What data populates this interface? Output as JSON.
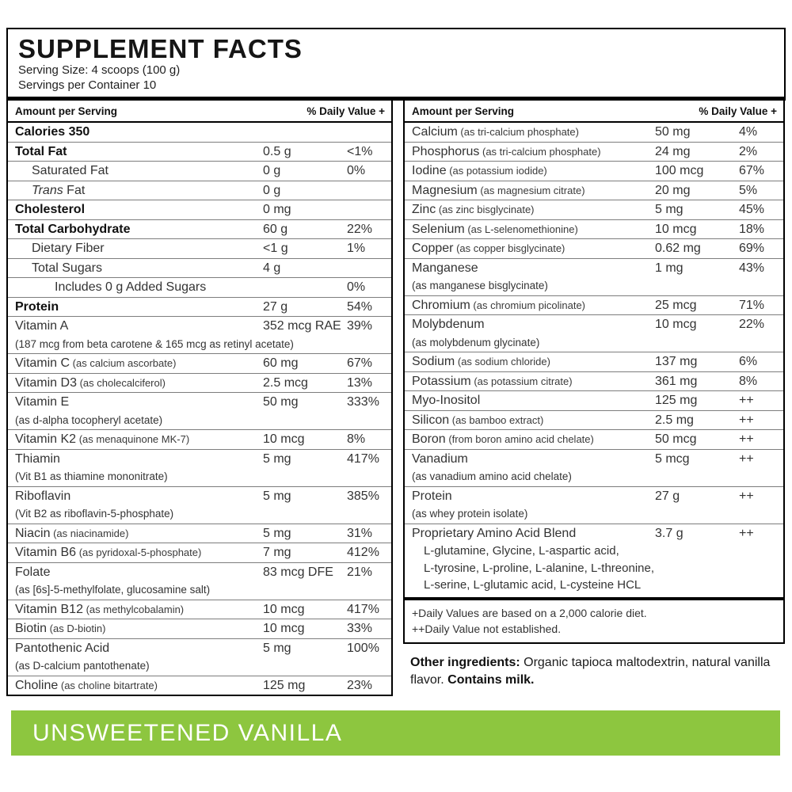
{
  "header": {
    "title": "SUPPLEMENT FACTS",
    "serving_size": "Serving Size: 4 scoops (100 g)",
    "servings_per_container": "Servings per Container 10"
  },
  "column_headers": {
    "amount": "Amount per Serving",
    "daily_value": "% Daily Value +"
  },
  "left_rows": [
    {
      "name": "Calories 350",
      "bold": true
    },
    {
      "name": "Total Fat",
      "bold": true,
      "amount": "0.5 g",
      "dv": "<1%"
    },
    {
      "name": "Saturated Fat",
      "indent": 1,
      "amount": "0 g",
      "dv": "0%"
    },
    {
      "name": "Fat",
      "italic_prefix": "Trans",
      "indent": 1,
      "amount": "0 g"
    },
    {
      "name": "Cholesterol",
      "bold": true,
      "amount": "0 mg"
    },
    {
      "name": "Total Carbohydrate",
      "bold": true,
      "amount": "60 g",
      "dv": "22%"
    },
    {
      "name": "Dietary Fiber",
      "indent": 1,
      "amount": "<1 g",
      "dv": "1%"
    },
    {
      "name": "Total Sugars",
      "indent": 1,
      "amount": "4 g"
    },
    {
      "name": "Includes 0 g Added Sugars",
      "indent": 2,
      "dv": "0%"
    },
    {
      "name": "Protein",
      "bold": true,
      "amount": "27 g",
      "dv": "54%"
    },
    {
      "name": "Vitamin A",
      "amount": "352 mcg RAE",
      "dv": "39%",
      "sub": "(187 mcg from beta carotene & 165 mcg as retinyl acetate)"
    },
    {
      "name": "Vitamin C",
      "detail": "(as calcium ascorbate)",
      "amount": "60 mg",
      "dv": "67%"
    },
    {
      "name": "Vitamin D3",
      "detail": "(as cholecalciferol)",
      "amount": "2.5 mcg",
      "dv": "13%"
    },
    {
      "name": "Vitamin E",
      "amount": "50 mg",
      "dv": "333%",
      "sub": "(as d-alpha tocopheryl acetate)"
    },
    {
      "name": "Vitamin K2",
      "detail": "(as menaquinone MK-7)",
      "amount": "10 mcg",
      "dv": "8%"
    },
    {
      "name": "Thiamin",
      "amount": "5 mg",
      "dv": "417%",
      "sub": "(Vit B1 as thiamine mononitrate)"
    },
    {
      "name": "Riboflavin",
      "amount": "5 mg",
      "dv": "385%",
      "sub": "(Vit B2 as riboflavin-5-phosphate)"
    },
    {
      "name": "Niacin",
      "detail": "(as niacinamide)",
      "amount": "5 mg",
      "dv": "31%"
    },
    {
      "name": "Vitamin B6",
      "detail": "(as pyridoxal-5-phosphate)",
      "amount": "7 mg",
      "dv": "412%"
    },
    {
      "name": "Folate",
      "amount": "83 mcg DFE",
      "dv": "21%",
      "sub": "(as [6s]-5-methylfolate, glucosamine salt)"
    },
    {
      "name": "Vitamin B12",
      "detail": "(as methylcobalamin)",
      "amount": "10 mcg",
      "dv": "417%"
    },
    {
      "name": "Biotin",
      "detail": "(as D-biotin)",
      "amount": "10 mcg",
      "dv": "33%"
    },
    {
      "name": "Pantothenic Acid",
      "amount": "5 mg",
      "dv": "100%",
      "sub": "(as D-calcium pantothenate)"
    },
    {
      "name": "Choline",
      "detail": "(as choline bitartrate)",
      "amount": "125 mg",
      "dv": "23%"
    }
  ],
  "right_rows": [
    {
      "name": "Calcium",
      "detail": "(as tri-calcium phosphate)",
      "amount": "50 mg",
      "dv": "4%"
    },
    {
      "name": "Phosphorus",
      "detail": "(as tri-calcium phosphate)",
      "amount": "24 mg",
      "dv": "2%"
    },
    {
      "name": "Iodine",
      "detail": "(as potassium iodide)",
      "amount": "100 mcg",
      "dv": "67%"
    },
    {
      "name": "Magnesium",
      "detail": "(as magnesium citrate)",
      "amount": "20 mg",
      "dv": "5%"
    },
    {
      "name": "Zinc",
      "detail": "(as zinc bisglycinate)",
      "amount": "5 mg",
      "dv": "45%"
    },
    {
      "name": "Selenium",
      "detail": "(as L-selenomethionine)",
      "amount": "10 mcg",
      "dv": "18%"
    },
    {
      "name": "Copper",
      "detail": "(as copper bisglycinate)",
      "amount": "0.62 mg",
      "dv": "69%"
    },
    {
      "name": "Manganese",
      "amount": "1 mg",
      "dv": "43%",
      "sub": "(as manganese bisglycinate)"
    },
    {
      "name": "Chromium",
      "detail": "(as chromium picolinate)",
      "amount": "25 mcg",
      "dv": "71%"
    },
    {
      "name": "Molybdenum",
      "amount": "10 mcg",
      "dv": "22%",
      "sub": "(as molybdenum glycinate)"
    },
    {
      "name": "Sodium",
      "detail": "(as sodium chloride)",
      "amount": "137 mg",
      "dv": "6%"
    },
    {
      "name": "Potassium",
      "detail": "(as potassium citrate)",
      "amount": "361 mg",
      "dv": "8%"
    },
    {
      "name": "Myo-Inositol",
      "amount": "125 mg",
      "dv": "++"
    },
    {
      "name": "Silicon",
      "detail": "(as bamboo extract)",
      "amount": "2.5 mg",
      "dv": "++"
    },
    {
      "name": "Boron",
      "detail": "(from boron amino acid chelate)",
      "amount": "50 mcg",
      "dv": "++"
    },
    {
      "name": "Vanadium",
      "amount": "5 mcg",
      "dv": "++",
      "sub": "(as vanadium amino acid chelate)"
    },
    {
      "name": "Protein",
      "amount": "27 g",
      "dv": "++",
      "sub": "(as whey protein isolate)"
    },
    {
      "name": "Proprietary Amino Acid Blend",
      "amount": "3.7 g",
      "dv": "++",
      "sub_lines": [
        "L-glutamine, Glycine, L-aspartic acid,",
        "L-tyrosine, L-proline, L-alanine, L-threonine,",
        "L-serine, L-glutamic acid, L-cysteine HCL"
      ]
    }
  ],
  "footnotes": {
    "line1": "+Daily Values are based on a 2,000 calorie diet.",
    "line2": "++Daily Value not established."
  },
  "other_ingredients": {
    "label": "Other ingredients:",
    "text": " Organic tapioca maltodextrin, natural vanilla flavor. ",
    "allergen": "Contains milk."
  },
  "banner": {
    "text": "UNSWEETENED VANILLA",
    "color": "#8DC63F",
    "text_color": "#FFFFFF"
  }
}
